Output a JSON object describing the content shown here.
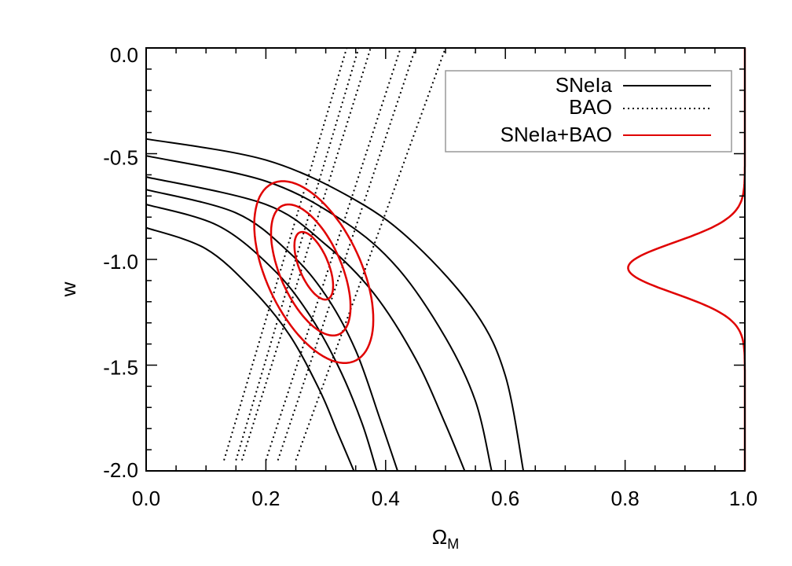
{
  "chart_data": {
    "type": "line",
    "title": "",
    "xlabel": "Ω",
    "xlabel_sub": "M",
    "ylabel": "w",
    "xlim": [
      0.0,
      1.0
    ],
    "ylim": [
      -2.0,
      0.0
    ],
    "xticks": [
      "0.0",
      "0.2",
      "0.4",
      "0.6",
      "0.8",
      "1.0"
    ],
    "yticks": [
      "0.0",
      "-0.5",
      "-1.0",
      "-1.5",
      "-2.0"
    ],
    "grid": false,
    "legend_position": "top-right",
    "series_style": {
      "SNeIa": {
        "color": "#000000",
        "dash": "solid"
      },
      "BAO": {
        "color": "#000000",
        "dash": "dotted"
      },
      "SNeIa+BAO": {
        "color": "#e00000",
        "dash": "solid"
      }
    },
    "legend": [
      {
        "label": "SNeIa",
        "series": "SNeIa"
      },
      {
        "label": "BAO",
        "series": "BAO"
      },
      {
        "label": "SNeIa+BAO",
        "series": "SNeIa+BAO"
      }
    ],
    "sne_curves": [
      {
        "points": [
          [
            0.0,
            -0.43
          ],
          [
            0.2,
            -0.53
          ],
          [
            0.35,
            -0.72
          ],
          [
            0.45,
            -0.93
          ],
          [
            0.55,
            -1.25
          ],
          [
            0.6,
            -1.55
          ],
          [
            0.63,
            -2.0
          ]
        ]
      },
      {
        "points": [
          [
            0.0,
            -0.51
          ],
          [
            0.2,
            -0.63
          ],
          [
            0.33,
            -0.82
          ],
          [
            0.42,
            -1.04
          ],
          [
            0.5,
            -1.37
          ],
          [
            0.55,
            -1.67
          ],
          [
            0.577,
            -2.0
          ]
        ]
      },
      {
        "points": [
          [
            0.0,
            -0.61
          ],
          [
            0.2,
            -0.74
          ],
          [
            0.3,
            -0.93
          ],
          [
            0.38,
            -1.16
          ],
          [
            0.45,
            -1.47
          ],
          [
            0.5,
            -1.78
          ],
          [
            0.532,
            -2.0
          ]
        ]
      },
      {
        "points": [
          [
            0.0,
            -0.67
          ],
          [
            0.15,
            -0.78
          ],
          [
            0.24,
            -0.97
          ],
          [
            0.3,
            -1.17
          ],
          [
            0.35,
            -1.43
          ],
          [
            0.39,
            -1.75
          ],
          [
            0.42,
            -2.0
          ]
        ]
      },
      {
        "points": [
          [
            0.0,
            -0.74
          ],
          [
            0.12,
            -0.84
          ],
          [
            0.21,
            -1.04
          ],
          [
            0.27,
            -1.25
          ],
          [
            0.32,
            -1.5
          ],
          [
            0.36,
            -1.77
          ],
          [
            0.385,
            -2.0
          ]
        ]
      },
      {
        "points": [
          [
            0.0,
            -0.85
          ],
          [
            0.1,
            -0.95
          ],
          [
            0.18,
            -1.15
          ],
          [
            0.24,
            -1.36
          ],
          [
            0.29,
            -1.62
          ],
          [
            0.32,
            -1.82
          ],
          [
            0.347,
            -2.0
          ]
        ]
      }
    ],
    "bao_lines": [
      {
        "points": [
          [
            0.13,
            -1.95
          ],
          [
            0.335,
            0.0
          ]
        ]
      },
      {
        "points": [
          [
            0.15,
            -1.95
          ],
          [
            0.355,
            0.0
          ]
        ]
      },
      {
        "points": [
          [
            0.16,
            -1.95
          ],
          [
            0.375,
            0.0
          ]
        ]
      },
      {
        "points": [
          [
            0.2,
            -1.95
          ],
          [
            0.425,
            0.0
          ]
        ]
      },
      {
        "points": [
          [
            0.22,
            -1.95
          ],
          [
            0.45,
            0.0
          ]
        ]
      },
      {
        "points": [
          [
            0.25,
            -1.95
          ],
          [
            0.5,
            0.0
          ]
        ]
      }
    ],
    "combined_contours": [
      {
        "center": [
          0.28,
          -1.03
        ],
        "semi_x": 0.026,
        "semi_y": 0.16,
        "tilt_dx_per_dy": -0.12
      },
      {
        "center": [
          0.275,
          -1.05
        ],
        "semi_x": 0.055,
        "semi_y": 0.31,
        "tilt_dx_per_dy": -0.12
      },
      {
        "center": [
          0.28,
          -1.06
        ],
        "semi_x": 0.085,
        "semi_y": 0.43,
        "tilt_dx_per_dy": -0.12
      }
    ],
    "marginal_w": {
      "baseline_x": 1.0,
      "peak_x": 0.805,
      "mean_w": -1.04,
      "sigma_w": 0.12
    }
  }
}
